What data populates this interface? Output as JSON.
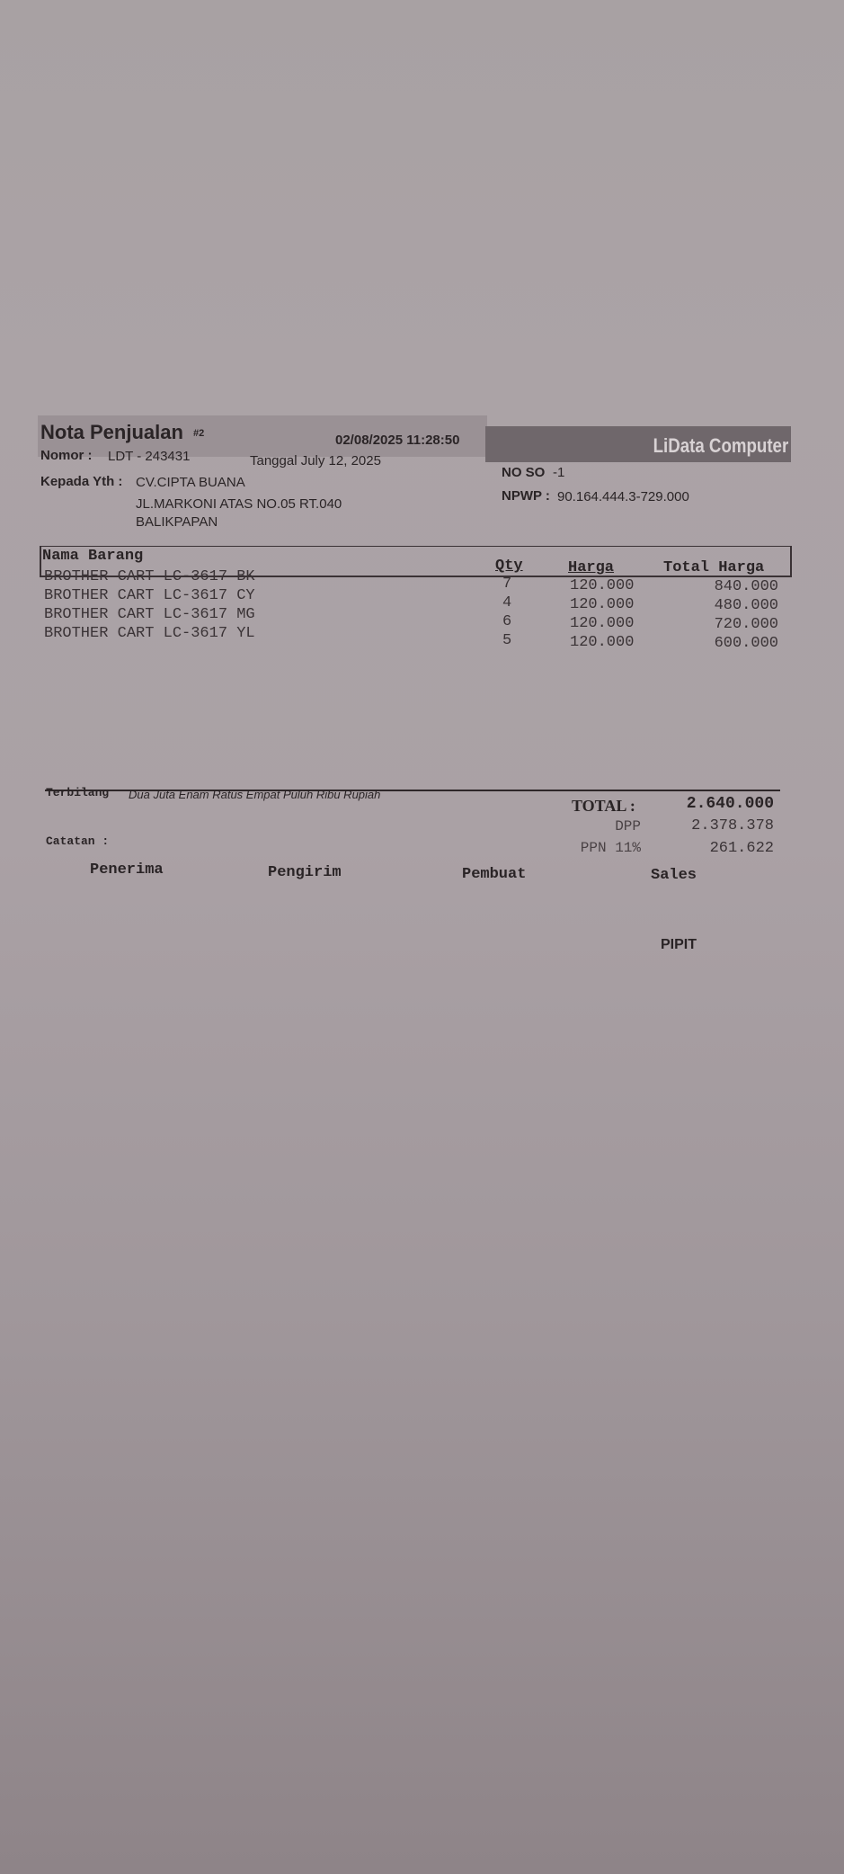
{
  "header": {
    "title": "Nota Penjualan",
    "copy_no": "#2",
    "printed_at": "02/08/2025 11:28:50",
    "brand": "LiData Computer",
    "nomor_label": "Nomor :",
    "nomor_value": "LDT  - 243431",
    "tanggal": "Tanggal July 12, 2025",
    "kepada_label": "Kepada Yth :",
    "customer": "CV.CIPTA BUANA",
    "address1": "JL.MARKONI ATAS NO.05 RT.040",
    "address2": "BALIKPAPAN",
    "no_so_label": "NO SO",
    "no_so_value": "-1",
    "npwp_label": "NPWP :",
    "npwp_value": "90.164.444.3-729.000"
  },
  "table": {
    "columns": [
      "Nama Barang",
      "Qty",
      "Harga",
      "Total Harga"
    ],
    "rows": [
      {
        "name": "BROTHER CART LC-3617 BK",
        "qty": "7",
        "harga": "120.000",
        "total": "840.000"
      },
      {
        "name": "BROTHER CART LC-3617 CY",
        "qty": "4",
        "harga": "120.000",
        "total": "480.000"
      },
      {
        "name": "BROTHER CART LC-3617 MG",
        "qty": "6",
        "harga": "120.000",
        "total": "720.000"
      },
      {
        "name": "BROTHER CART LC-3617 YL",
        "qty": "5",
        "harga": "120.000",
        "total": "600.000"
      }
    ]
  },
  "footer": {
    "terbilang_label": "Terbilang",
    "terbilang_value": "Dua Juta Enam Ratus Empat Puluh  Ribu  Rupiah",
    "total_label": "TOTAL :",
    "total_value": "2.640.000",
    "dpp_label": "DPP",
    "dpp_value": "2.378.378",
    "ppn_label": "PPN 11%",
    "ppn_value": "261.622",
    "catatan_label": "Catatan :",
    "signatures": [
      "Penerima",
      "Pengirim",
      "Pembuat",
      "Sales"
    ],
    "sales_name": "PIPIT"
  }
}
